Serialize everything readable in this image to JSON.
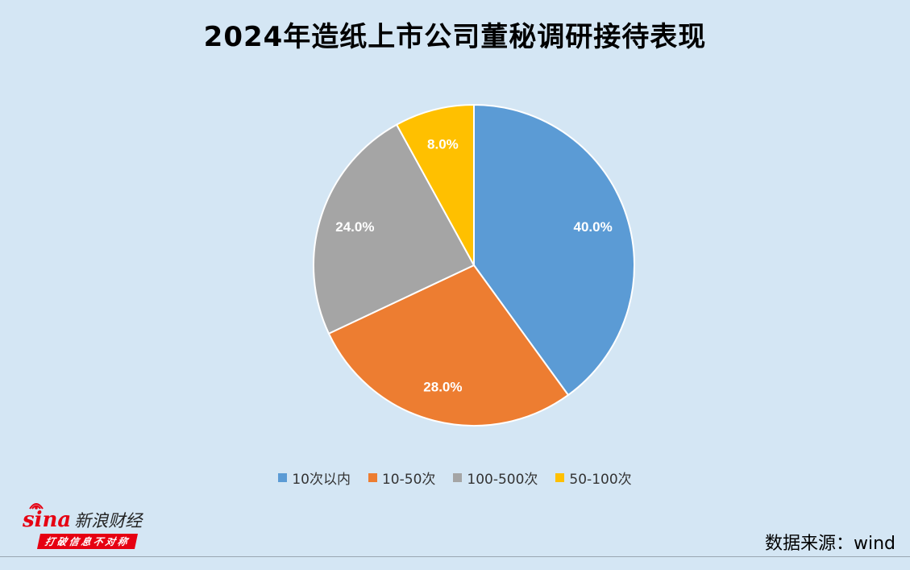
{
  "title": "2024年造纸上市公司董秘调研接待表现",
  "source": "数据来源：wind",
  "logo": {
    "brand": "sina",
    "name": "新浪财经",
    "tagline": "打破信息不对称"
  },
  "chart_data": {
    "type": "pie",
    "title": "2024年造纸上市公司董秘调研接待表现",
    "slices": [
      {
        "label": "10次以内",
        "value": 40.0,
        "display": "40.0%",
        "color": "#5b9bd5"
      },
      {
        "label": "10-50次",
        "value": 28.0,
        "display": "28.0%",
        "color": "#ed7d31"
      },
      {
        "label": "100-500次",
        "value": 24.0,
        "display": "24.0%",
        "color": "#a5a5a5"
      },
      {
        "label": "50-100次",
        "value": 8.0,
        "display": "8.0%",
        "color": "#ffc000"
      }
    ],
    "legend_position": "bottom",
    "start_angle": "12 o'clock",
    "direction": "clockwise"
  }
}
